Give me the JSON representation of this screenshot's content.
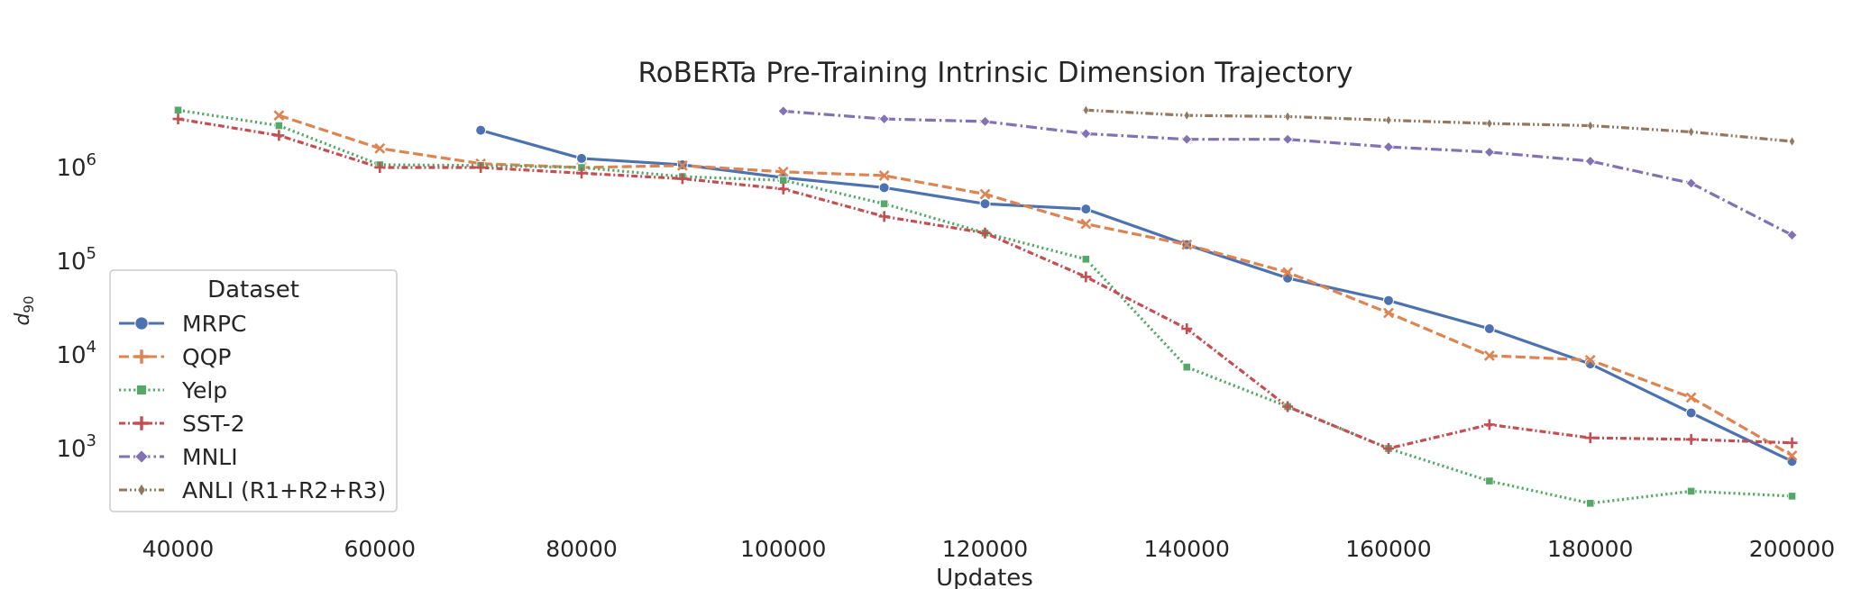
{
  "chart_data": {
    "type": "line",
    "title": "RoBERTa Pre-Training Intrinsic Dimension Trajectory",
    "xlabel": "Updates",
    "ylabel": "d",
    "ylabel_subscript": "90",
    "yscale": "log",
    "xlim": [
      35000,
      205000
    ],
    "ylim_log10": [
      2.35,
      6.85
    ],
    "grid": false,
    "x_ticks": [
      40000,
      60000,
      80000,
      100000,
      120000,
      140000,
      160000,
      180000,
      200000
    ],
    "x_tick_labels": [
      "40000",
      "60000",
      "80000",
      "100000",
      "120000",
      "140000",
      "160000",
      "180000",
      "200000"
    ],
    "y_ticks_log10": [
      3,
      4,
      5,
      6
    ],
    "y_tick_base": "10",
    "y_tick_exponents": [
      "3",
      "4",
      "5",
      "6"
    ],
    "legend": {
      "title": "Dataset",
      "placement": "lower-left"
    },
    "series": [
      {
        "name": "MRPC",
        "color": "#4c72b0",
        "dash": "solid",
        "marker": "circle",
        "x": [
          70000,
          80000,
          90000,
          100000,
          110000,
          120000,
          130000,
          140000,
          150000,
          160000,
          170000,
          180000,
          190000,
          200000
        ],
        "values": [
          2500000,
          1250000,
          1070000,
          780000,
          610000,
          410000,
          360000,
          150000,
          66000,
          38000,
          19000,
          8000,
          2400,
          730
        ]
      },
      {
        "name": "QQP",
        "color": "#dd8452",
        "dash": "dashed",
        "marker": "x",
        "x": [
          50000,
          60000,
          70000,
          80000,
          90000,
          100000,
          110000,
          120000,
          130000,
          140000,
          150000,
          160000,
          170000,
          180000,
          190000,
          200000
        ],
        "values": [
          3600000,
          1600000,
          1100000,
          1000000,
          1050000,
          900000,
          820000,
          520000,
          250000,
          150000,
          76000,
          28000,
          9800,
          8800,
          3500,
          840
        ]
      },
      {
        "name": "Yelp",
        "color": "#55a868",
        "dash": "dotted",
        "marker": "square",
        "x": [
          40000,
          50000,
          60000,
          70000,
          80000,
          90000,
          100000,
          110000,
          120000,
          130000,
          140000,
          150000,
          160000,
          170000,
          180000,
          190000,
          200000
        ],
        "values": [
          4100000,
          2800000,
          1070000,
          1050000,
          1000000,
          800000,
          730000,
          410000,
          200000,
          105000,
          7400,
          2800,
          1000,
          450,
          260,
          350,
          310
        ]
      },
      {
        "name": "SST-2",
        "color": "#c44e52",
        "dash": "dashdot-dense",
        "marker": "plus",
        "x": [
          40000,
          50000,
          60000,
          70000,
          80000,
          90000,
          100000,
          110000,
          120000,
          130000,
          140000,
          150000,
          160000,
          170000,
          180000,
          190000,
          200000
        ],
        "values": [
          3300000,
          2200000,
          1000000,
          1000000,
          870000,
          760000,
          590000,
          300000,
          200000,
          68000,
          19000,
          2800,
          1000,
          1800,
          1300,
          1250,
          1150
        ]
      },
      {
        "name": "MNLI",
        "color": "#8172b3",
        "dash": "dashdot",
        "marker": "diamond",
        "x": [
          100000,
          110000,
          120000,
          130000,
          140000,
          150000,
          160000,
          170000,
          180000,
          190000,
          200000
        ],
        "values": [
          4000000,
          3300000,
          3100000,
          2300000,
          2000000,
          2000000,
          1660000,
          1460000,
          1170000,
          680000,
          190000
        ]
      },
      {
        "name": "ANLI (R1+R2+R3)",
        "color": "#937860",
        "dash": "dashdotdot",
        "marker": "thin-diamond",
        "x": [
          130000,
          140000,
          150000,
          160000,
          170000,
          180000,
          190000,
          200000
        ],
        "values": [
          4100000,
          3600000,
          3500000,
          3200000,
          2950000,
          2800000,
          2400000,
          1900000
        ]
      }
    ]
  }
}
